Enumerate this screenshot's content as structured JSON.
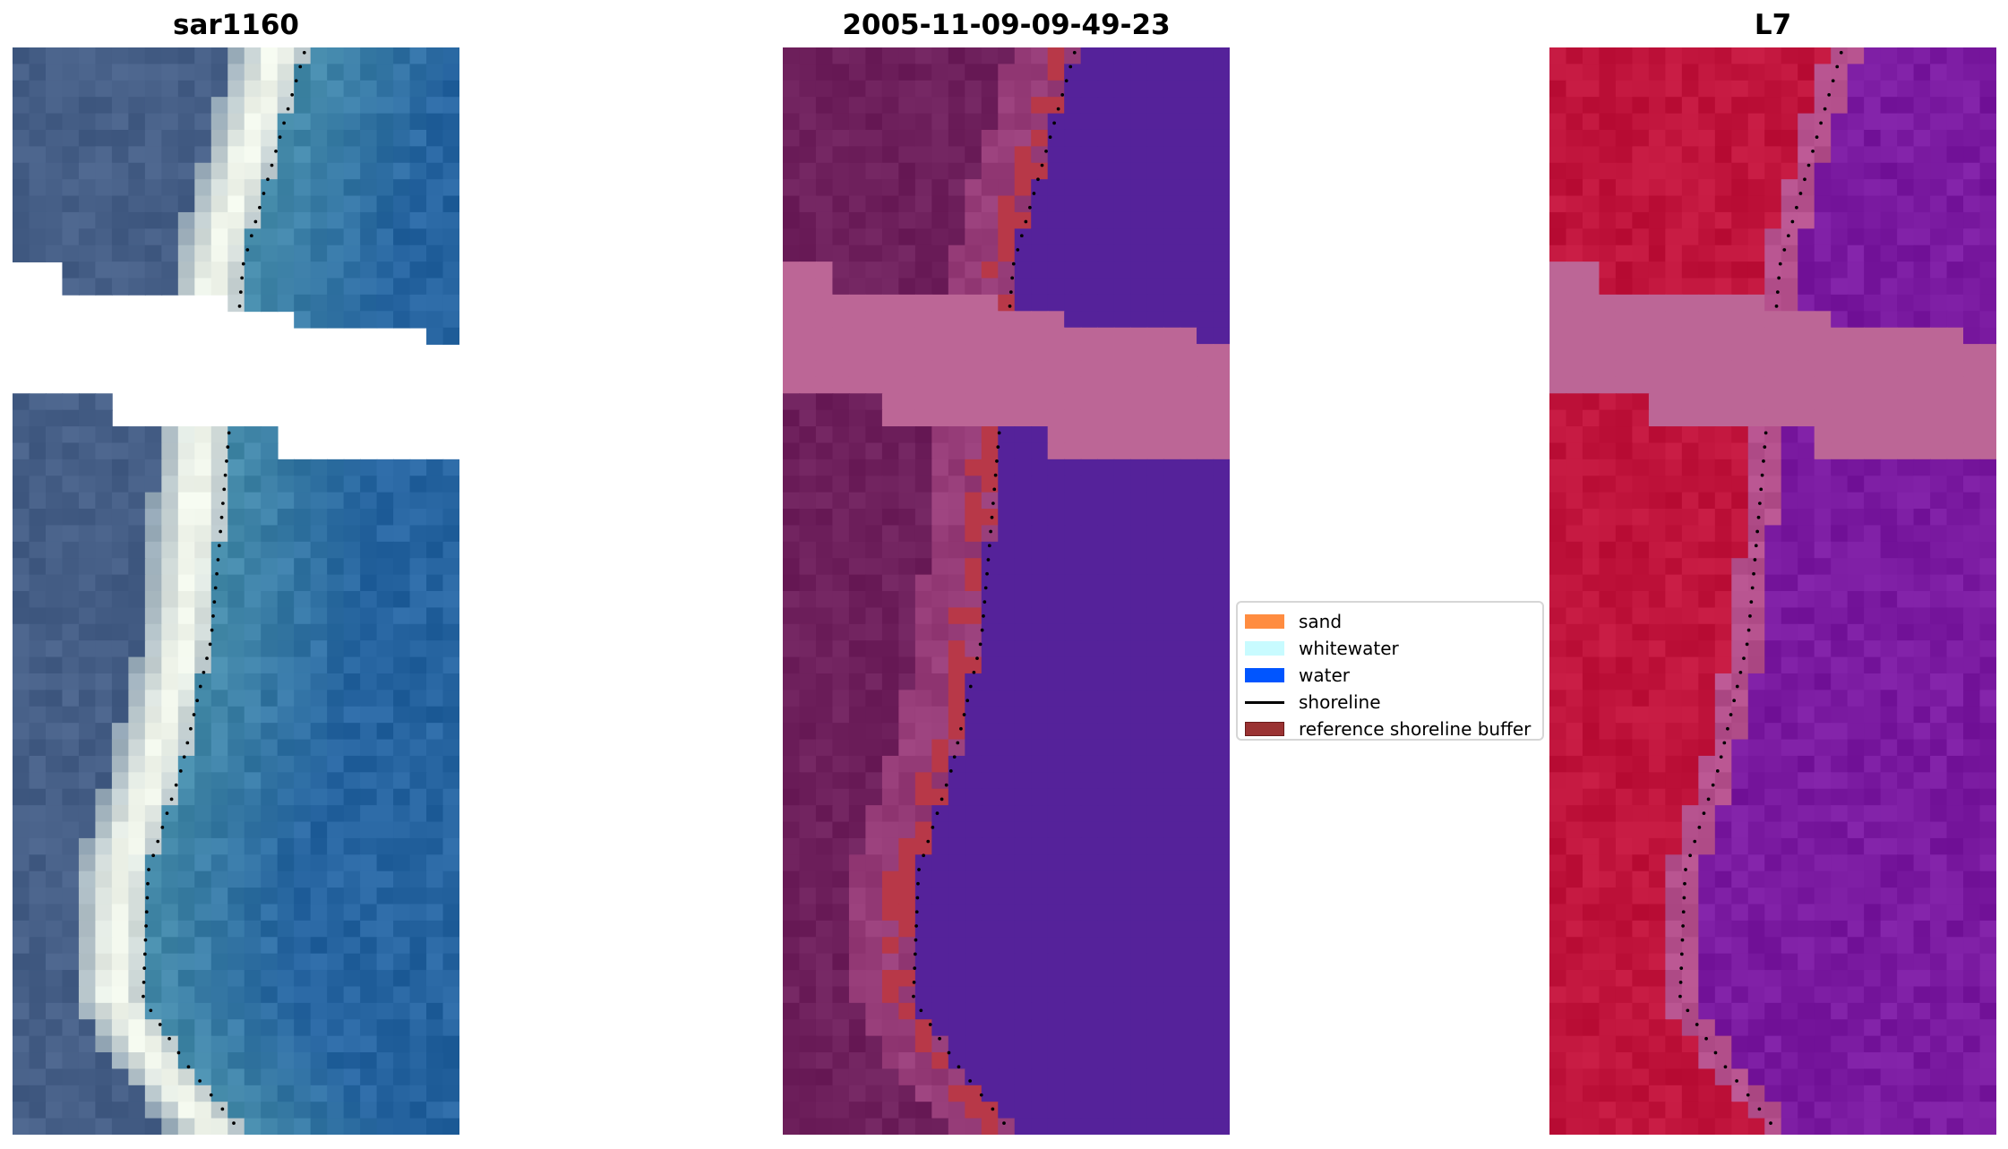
{
  "panels": [
    {
      "title": "sar1160"
    },
    {
      "title": "2005-11-09-09-49-23"
    },
    {
      "title": "L7"
    }
  ],
  "legend": {
    "items": [
      {
        "label": "sand",
        "color": "#ff8c40"
      },
      {
        "label": "whitewater",
        "color": "#c8fbff"
      },
      {
        "label": "water",
        "color": "#0055ff"
      },
      {
        "label": "shoreline",
        "color": "#000000"
      },
      {
        "label": "reference shoreline buffer",
        "color": "#9a3232"
      }
    ]
  }
}
